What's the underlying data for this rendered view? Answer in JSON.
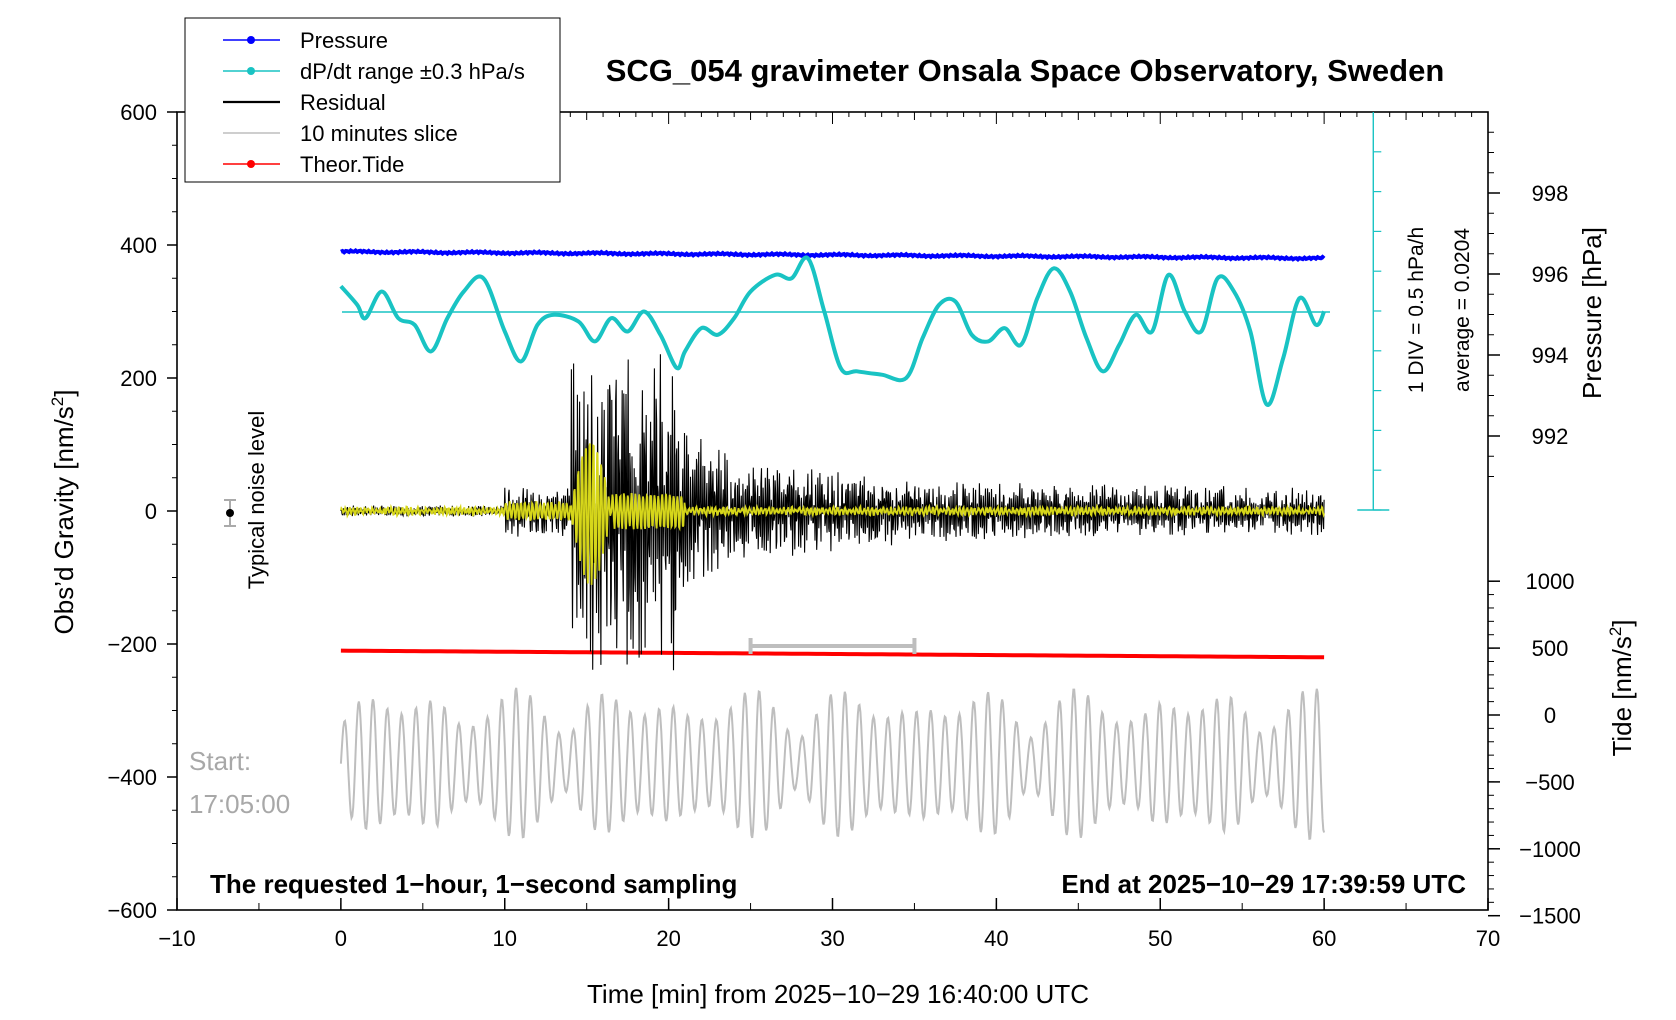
{
  "chart_data": {
    "type": "line",
    "title": "SCG_054 gravimeter Onsala Space Observatory, Sweden",
    "xlabel": "Time [min] from 2025−10−29 16:40:00 UTC",
    "ylabel": "Obs’d Gravity [nm/s",
    "ylabel_sup": "2",
    "ylabel_end": "]",
    "right_label_pressure": "Pressure [hPa]",
    "right_label_tide": "Tide [nm/s",
    "right_label_tide_sup": "2",
    "right_label_tide_end": "]",
    "xlim": [
      -10,
      70
    ],
    "ylim": [
      -600,
      600
    ],
    "x_ticks": [
      "−10",
      "0",
      "10",
      "20",
      "30",
      "40",
      "50",
      "60",
      "70"
    ],
    "x_tick_values": [
      -10,
      0,
      10,
      20,
      30,
      40,
      50,
      60,
      70
    ],
    "y_ticks": [
      "600",
      "400",
      "200",
      "0",
      "−200",
      "−400",
      "−600"
    ],
    "y_tick_values": [
      600,
      400,
      200,
      0,
      -200,
      -400,
      -600
    ],
    "pressure_ticks": [
      "998",
      "996",
      "994",
      "992"
    ],
    "pressure_tick_values": [
      998,
      996,
      994,
      992
    ],
    "tide_ticks": [
      "1000",
      "500",
      "0",
      "−500",
      "−1000",
      "−1500"
    ],
    "tide_tick_values": [
      1000,
      500,
      0,
      -500,
      -1000,
      -1500
    ],
    "legend_position": "top-left",
    "legend": [
      {
        "name": "Pressure",
        "color": "#0000ff",
        "marker": true
      },
      {
        "name": "dP/dt range ±0.3 hPa/s",
        "color": "#19c3c3",
        "marker": true
      },
      {
        "name": "Residual",
        "color": "#000000",
        "marker": false
      },
      {
        "name": "10 minutes slice",
        "color": "#bebebe",
        "marker": false
      },
      {
        "name": "Theor.Tide",
        "color": "#ff0000",
        "marker": true
      }
    ],
    "dpdt_scale_label_1": "1 DIV = 0.5 hPa/h",
    "dpdt_scale_label_2": "average = 0.0204",
    "noise_label": "Typical noise level",
    "start_label_1": "Start:",
    "start_label_2": "17:05:00",
    "footer_left": "The requested 1−hour, 1−second sampling",
    "footer_right": "End at 2025−10−29 17:39:59 UTC",
    "slice_window_minutes": [
      25,
      35
    ],
    "series": [
      {
        "name": "Pressure",
        "x_range": [
          0,
          60
        ],
        "y_gravity_axis_start": 390,
        "y_gravity_axis_end": 380
      },
      {
        "name": "Theor.Tide",
        "x_range": [
          0,
          60
        ],
        "y_gravity_axis_start": -210,
        "y_gravity_axis_end": -220
      },
      {
        "name": "dP/dt range ±0.3 hPa/s",
        "x": [
          0,
          1,
          1.5,
          2.5,
          3.5,
          4.5,
          5.5,
          6.5,
          7.5,
          8.7,
          10,
          11,
          12,
          13,
          14.5,
          15.5,
          16.5,
          17.5,
          18.5,
          19.5,
          20.5,
          21,
          22,
          23,
          24,
          25,
          26.5,
          27.5,
          28.5,
          29.5,
          30.5,
          31.5,
          33,
          34.5,
          35.5,
          36.5,
          37.5,
          38.5,
          39.5,
          40.5,
          41.5,
          42.5,
          43.5,
          44.5,
          45.5,
          46.5,
          47.5,
          48.5,
          49.5,
          50.5,
          51.5,
          52.5,
          53.5,
          54.5,
          55.5,
          56.5,
          57.5,
          58.5,
          59.5,
          60
        ],
        "y": [
          338,
          310,
          290,
          330,
          290,
          280,
          240,
          290,
          330,
          350,
          270,
          225,
          280,
          295,
          285,
          255,
          290,
          270,
          300,
          265,
          215,
          240,
          275,
          265,
          290,
          330,
          355,
          350,
          380,
          300,
          215,
          210,
          205,
          200,
          260,
          310,
          315,
          265,
          255,
          275,
          250,
          320,
          365,
          330,
          260,
          210,
          250,
          295,
          270,
          355,
          300,
          270,
          350,
          330,
          270,
          160,
          230,
          320,
          280,
          300
        ]
      }
    ]
  }
}
